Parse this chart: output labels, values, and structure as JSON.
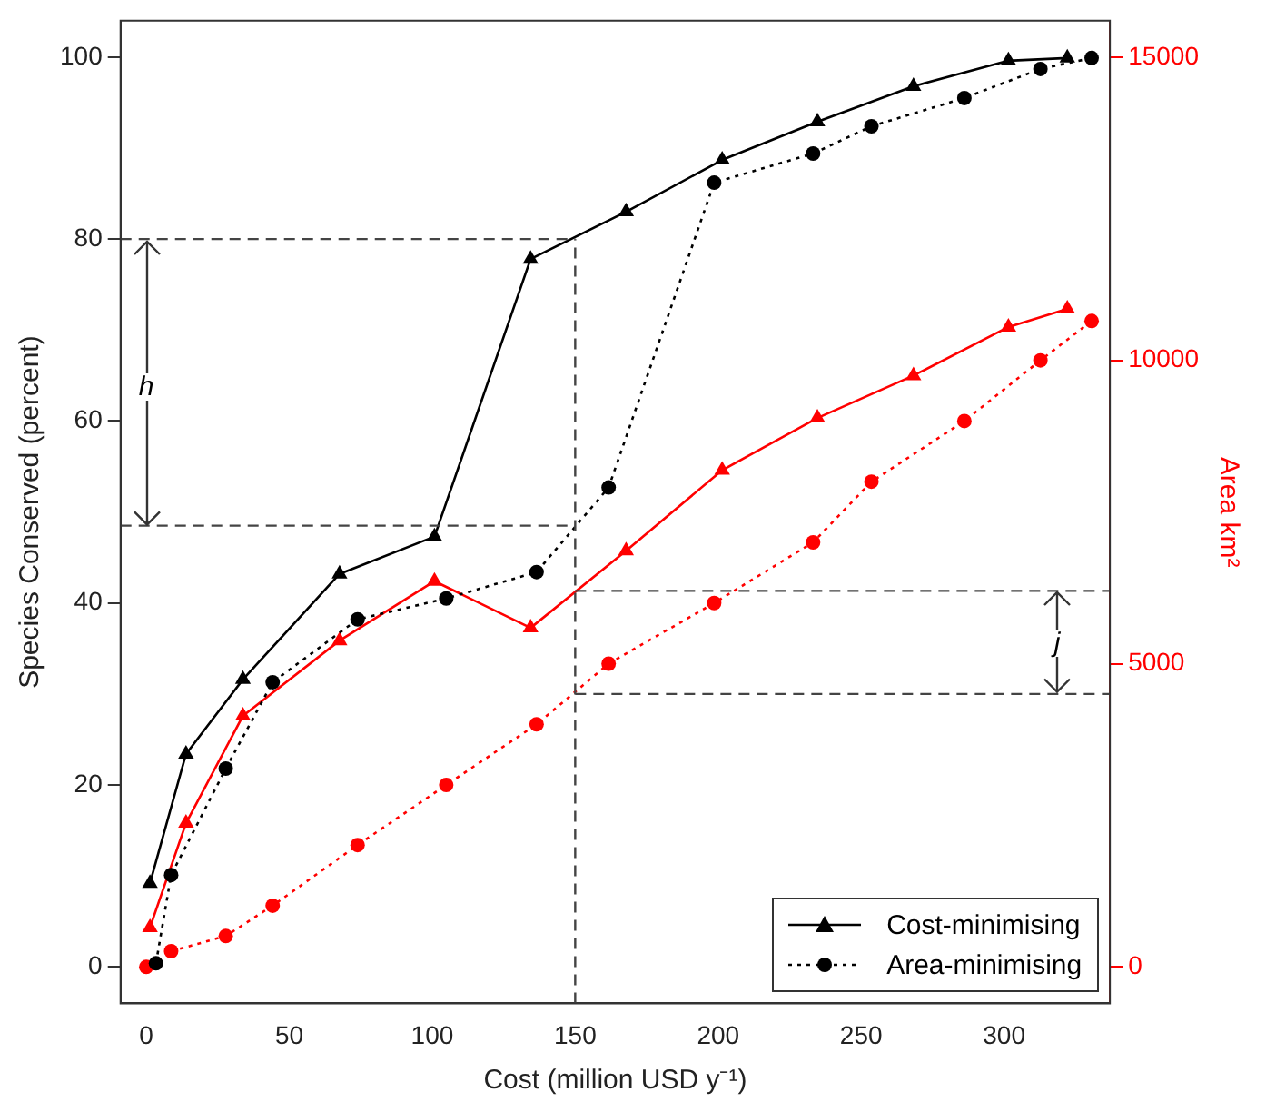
{
  "chart_data": {
    "type": "line",
    "xlabel": "Cost (million USD y⁻¹)",
    "ylabel": "Species Conserved (percent)",
    "y2label": "Area km²",
    "xlim": [
      -9,
      337
    ],
    "xticks": [
      0,
      50,
      100,
      150,
      200,
      250,
      300
    ],
    "ylim": [
      -4,
      104
    ],
    "yticks": [
      0,
      20,
      40,
      60,
      80,
      100
    ],
    "y2lim": [
      -600,
      15600
    ],
    "y2ticks": [
      0,
      5000,
      10000,
      15000
    ],
    "grid": false,
    "legend": "bottom right",
    "series": [
      {
        "name": "Cost-minimising",
        "color": "#000000",
        "marker": "triangle",
        "line_style": "solid",
        "x": [
          1.3,
          13.9,
          33.8,
          67.6,
          100.8,
          134.4,
          167.8,
          201.4,
          234.7,
          268.3,
          301.5,
          322.1
        ],
        "values": [
          9.2,
          23.4,
          31.6,
          43.2,
          47.3,
          77.8,
          83.0,
          88.7,
          92.9,
          96.8,
          99.6,
          99.9
        ]
      },
      {
        "name": "Area-minimising",
        "color": "#000000",
        "marker": "circle",
        "line_style": "dotted",
        "x": [
          3.4,
          8.7,
          27.8,
          44.2,
          73.9,
          104.9,
          136.5,
          161.7,
          198.6,
          233.2,
          253.6,
          286.1,
          312.7,
          330.6
        ],
        "values": [
          0.4,
          10.1,
          21.8,
          31.3,
          38.2,
          40.5,
          43.4,
          52.7,
          86.2,
          89.4,
          92.4,
          95.5,
          98.7,
          99.9
        ]
      },
      {
        "color": "#ff0000",
        "marker": "triangle",
        "line_style": "solid",
        "axis": "y2",
        "x": [
          1.3,
          13.9,
          33.8,
          67.6,
          100.8,
          134.4,
          167.8,
          201.4,
          234.7,
          268.3,
          301.5,
          322.1
        ],
        "values": [
          650,
          2370,
          4140,
          5380,
          6360,
          5590,
          6860,
          8190,
          9050,
          9750,
          10550,
          10850
        ]
      },
      {
        "color": "#ff0000",
        "marker": "circle",
        "line_style": "dotted",
        "axis": "y2",
        "x": [
          0,
          3.4,
          8.7,
          27.8,
          44.2,
          73.9,
          104.9,
          136.5,
          161.7,
          198.6,
          233.2,
          253.6,
          286.1,
          312.7,
          330.6
        ],
        "values": [
          0,
          null,
          260,
          510,
          1010,
          2010,
          3000,
          4000,
          5000,
          6000,
          7000,
          8000,
          9000,
          10000,
          10650
        ]
      }
    ],
    "ref_lines": [
      {
        "axis": "y",
        "value": 80,
        "line_style": "dashed",
        "color": "#444444"
      },
      {
        "axis": "y",
        "value": 48.5,
        "line_style": "dashed",
        "color": "#444444"
      },
      {
        "axis": "x",
        "value": 150,
        "line_style": "dashed",
        "color": "#444444"
      },
      {
        "axis": "y2",
        "value": 6200,
        "line_style": "dashed",
        "color": "#444444"
      },
      {
        "axis": "y2",
        "value": 4500,
        "line_style": "dashed",
        "color": "#444444"
      }
    ],
    "annotations": [
      {
        "text": "h",
        "x": 0,
        "y": 63.7
      },
      "j"
    ]
  }
}
